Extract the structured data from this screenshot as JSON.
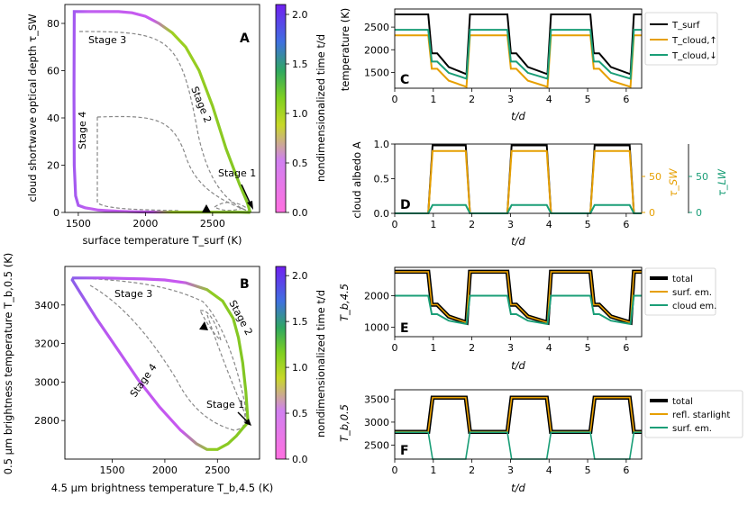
{
  "colors": {
    "black": "#000000",
    "orange": "#E69F00",
    "teal": "#1A9E77",
    "dashed": "#888888",
    "colormap": [
      "#FF70E0",
      "#B060F0",
      "#7FD020",
      "#4CB030",
      "#6060E0",
      "#7020F0"
    ]
  },
  "chart_data": [
    {
      "id": "A",
      "type": "line",
      "letter": "A",
      "xlabel": "surface temperature T_surf (K)",
      "ylabel": "cloud shortwave optical depth τ_SW",
      "xlim": [
        1400,
        2850
      ],
      "ylim": [
        0,
        88
      ],
      "xticks": [
        "1500",
        "2000",
        "2500"
      ],
      "yticks": [
        "0",
        "20",
        "40",
        "60",
        "80"
      ],
      "colorbar": {
        "label": "nondimensionalized time t/d",
        "range": [
          0,
          2.1
        ],
        "ticks": [
          "0.0",
          "0.5",
          "1.0",
          "1.5",
          "2.0"
        ]
      },
      "annotations": [
        "Stage 1",
        "Stage 2",
        "Stage 3",
        "Stage 4"
      ],
      "series": [
        {
          "name": "cycle",
          "x": [
            2780,
            2760,
            2700,
            2600,
            2500,
            2400,
            2300,
            2200,
            2100,
            2000,
            1900,
            1800,
            1700,
            1600,
            1500,
            1470,
            1468,
            1470,
            1480,
            1500,
            1550,
            1600,
            1650,
            1700,
            1800,
            1900,
            2000,
            2100,
            2200,
            2300,
            2400,
            2500,
            2600,
            2700,
            2780
          ],
          "y": [
            0,
            4,
            12,
            27,
            45,
            60,
            70,
            76,
            80,
            83,
            84.5,
            85,
            85,
            85,
            85,
            85,
            50,
            20,
            7,
            3,
            2,
            1.5,
            1,
            0.8,
            0.5,
            0.3,
            0.2,
            0.1,
            0.1,
            0.1,
            0.1,
            0.1,
            0.1,
            0.1,
            0
          ]
        }
      ]
    },
    {
      "id": "B",
      "type": "line",
      "letter": "B",
      "xlabel": "4.5 μm brightness temperature T_b,4.5 (K)",
      "ylabel": "0.5 μm brightness temperature T_b,0.5 (K)",
      "xlim": [
        1050,
        2900
      ],
      "ylim": [
        2600,
        3600
      ],
      "xticks": [
        "1500",
        "2000",
        "2500"
      ],
      "yticks": [
        "2800",
        "3000",
        "3200",
        "3400"
      ],
      "colorbar": {
        "label": "nondimensionalized time t/d",
        "range": [
          0,
          2.1
        ],
        "ticks": [
          "0.0",
          "0.5",
          "1.0",
          "1.5",
          "2.0"
        ]
      },
      "annotations": [
        "Stage 1",
        "Stage 2",
        "Stage 3",
        "Stage 4"
      ],
      "series": [
        {
          "name": "cycle",
          "x": [
            2790,
            2770,
            2740,
            2700,
            2650,
            2550,
            2400,
            2200,
            2000,
            1800,
            1600,
            1400,
            1200,
            1130,
            1120,
            1200,
            1350,
            1550,
            1750,
            1950,
            2150,
            2300,
            2400,
            2500,
            2600,
            2680,
            2740,
            2790
          ],
          "y": [
            2790,
            2950,
            3100,
            3230,
            3330,
            3420,
            3480,
            3515,
            3530,
            3535,
            3538,
            3540,
            3540,
            3540,
            3530,
            3460,
            3330,
            3170,
            3010,
            2870,
            2750,
            2680,
            2650,
            2650,
            2680,
            2720,
            2760,
            2790
          ]
        }
      ]
    },
    {
      "id": "C",
      "type": "line",
      "letter": "C",
      "xlabel": "t/d",
      "ylabel": "temperature (K)",
      "xlim": [
        0,
        6.4
      ],
      "ylim": [
        1150,
        2900
      ],
      "xticks": [
        "0",
        "1",
        "2",
        "3",
        "4",
        "5",
        "6"
      ],
      "yticks": [
        "1500",
        "2000",
        "2500"
      ],
      "legend": [
        "T_surf",
        "T_cloud,↑",
        "T_cloud,↓"
      ],
      "series": [
        {
          "name": "T_surf",
          "hi": 2780,
          "lo": 1460
        },
        {
          "name": "T_cloud,↑",
          "hi": 2320,
          "lo": 1180
        },
        {
          "name": "T_cloud,↓",
          "hi": 2440,
          "lo": 1360
        }
      ]
    },
    {
      "id": "D",
      "type": "line",
      "letter": "D",
      "xlabel": "t/d",
      "ylabel": "cloud albedo A",
      "xlim": [
        0,
        6.4
      ],
      "ylim": [
        0,
        1.0
      ],
      "xticks": [
        "0",
        "1",
        "2",
        "3",
        "4",
        "5",
        "6"
      ],
      "yticks": [
        "0.0",
        "0.5",
        "1.0"
      ],
      "y2label": "τ_SW",
      "y2ticks": [
        "0",
        "50"
      ],
      "y3label": "τ_LW",
      "y3ticks": [
        "0",
        "50"
      ],
      "series": [
        {
          "name": "albedo",
          "hi": 0.98,
          "lo": 0
        },
        {
          "name": "τ_SW",
          "hi": 0.9,
          "lo": 0
        },
        {
          "name": "τ_LW",
          "hi": 0.12,
          "lo": 0
        }
      ]
    },
    {
      "id": "E",
      "type": "line",
      "letter": "E",
      "xlabel": "t/d",
      "ylabel": "T_b,4.5",
      "xlim": [
        0,
        6.4
      ],
      "ylim": [
        700,
        2900
      ],
      "xticks": [
        "0",
        "1",
        "2",
        "3",
        "4",
        "5",
        "6"
      ],
      "yticks": [
        "1000",
        "2000"
      ],
      "legend": [
        "total",
        "surf. em.",
        "cloud em."
      ],
      "series": [
        {
          "name": "total",
          "hi": 2760,
          "lo": 1150
        },
        {
          "name": "surf. em.",
          "hi": 2760,
          "lo": 1150
        },
        {
          "name": "cloud em.",
          "hi": 2000,
          "lo": 1100
        }
      ]
    },
    {
      "id": "F",
      "type": "line",
      "letter": "F",
      "xlabel": "t/d",
      "ylabel": "T_b,0.5",
      "xlim": [
        0,
        6.4
      ],
      "ylim": [
        2200,
        3700
      ],
      "xticks": [
        "0",
        "1",
        "2",
        "3",
        "4",
        "5",
        "6"
      ],
      "yticks": [
        "2500",
        "3000",
        "3500"
      ],
      "legend": [
        "total",
        "refl. starlight",
        "surf. em."
      ],
      "series": [
        {
          "name": "total",
          "hi": 3530,
          "lo": 2790
        },
        {
          "name": "refl. starlight",
          "hi": 3530,
          "lo": 2790
        },
        {
          "name": "surf. em.",
          "hi": 2780,
          "lo": 2200
        }
      ]
    }
  ]
}
